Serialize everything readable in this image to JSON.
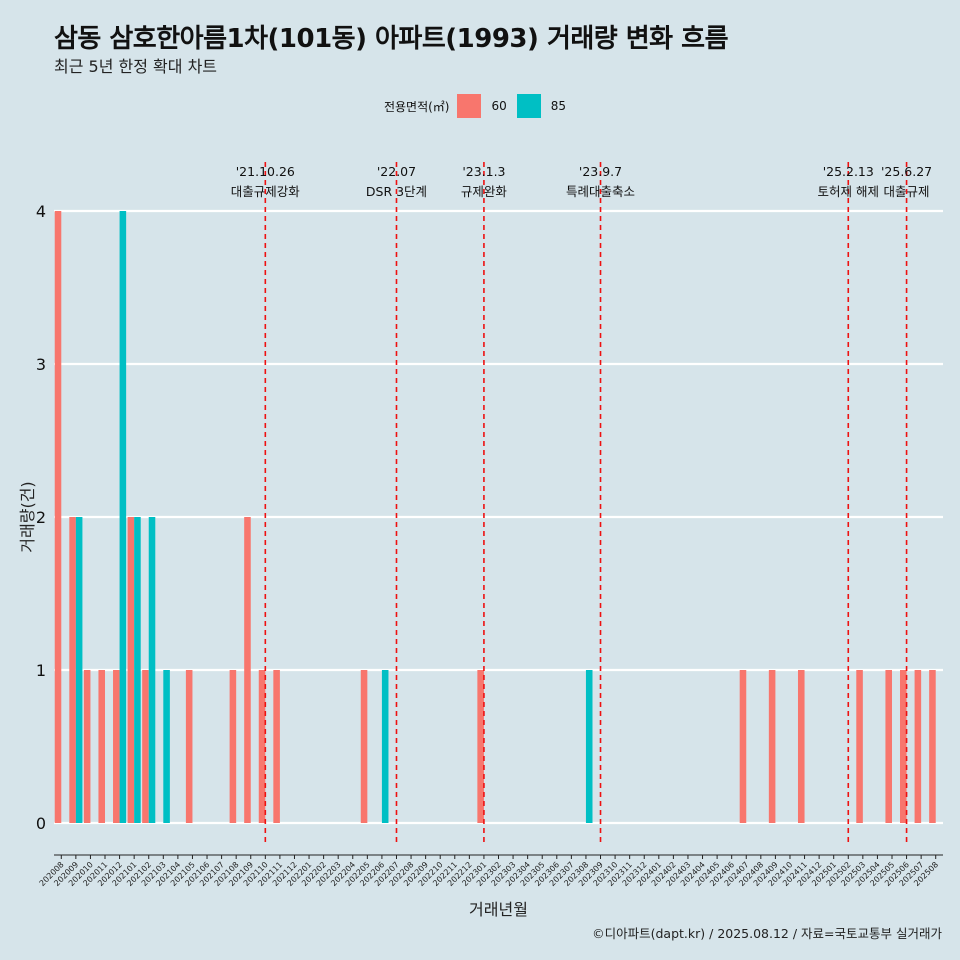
{
  "header": {
    "title": "삼동 삼호한아름1차(101동) 아파트(1993) 거래량 변화 흐름",
    "subtitle": "최근 5년 한정 확대 차트"
  },
  "legend": {
    "title": "전용면적(㎡)",
    "items": [
      {
        "label": "60",
        "color": "#F8766D"
      },
      {
        "label": "85",
        "color": "#00BFC4"
      }
    ]
  },
  "caption": "©디아파트(dapt.kr) / 2025.08.12 / 자료=국토교통부 실거래가",
  "chart_data": {
    "type": "bar",
    "xlabel": "거래년월",
    "ylabel": "거래량(건)",
    "ylim": [
      0,
      4
    ],
    "yticks": [
      0,
      1,
      2,
      3,
      4
    ],
    "grid": true,
    "legend_position": "top",
    "categories": [
      "202008",
      "202009",
      "202010",
      "202011",
      "202012",
      "202101",
      "202102",
      "202103",
      "202104",
      "202105",
      "202106",
      "202107",
      "202108",
      "202109",
      "202110",
      "202111",
      "202112",
      "202201",
      "202202",
      "202203",
      "202204",
      "202205",
      "202206",
      "202207",
      "202208",
      "202209",
      "202210",
      "202211",
      "202212",
      "202301",
      "202302",
      "202303",
      "202304",
      "202305",
      "202306",
      "202307",
      "202308",
      "202309",
      "202310",
      "202311",
      "202312",
      "202401",
      "202402",
      "202403",
      "202404",
      "202405",
      "202406",
      "202407",
      "202408",
      "202409",
      "202410",
      "202411",
      "202412",
      "202501",
      "202502",
      "202503",
      "202504",
      "202505",
      "202506",
      "202507",
      "202508"
    ],
    "series": [
      {
        "name": "60",
        "color": "#F8766D",
        "values": [
          4,
          2,
          1,
          1,
          1,
          2,
          1,
          0,
          0,
          1,
          0,
          0,
          1,
          2,
          1,
          1,
          0,
          0,
          0,
          0,
          0,
          1,
          0,
          0,
          0,
          0,
          0,
          0,
          0,
          1,
          0,
          0,
          0,
          0,
          0,
          0,
          0,
          0,
          0,
          0,
          0,
          0,
          0,
          0,
          0,
          0,
          0,
          1,
          0,
          1,
          0,
          1,
          0,
          0,
          0,
          1,
          0,
          1,
          1,
          1,
          1
        ]
      },
      {
        "name": "85",
        "color": "#00BFC4",
        "values": [
          0,
          2,
          0,
          0,
          4,
          2,
          2,
          1,
          0,
          0,
          0,
          0,
          0,
          0,
          0,
          0,
          0,
          0,
          0,
          0,
          0,
          0,
          1,
          0,
          0,
          0,
          0,
          0,
          0,
          0,
          0,
          0,
          0,
          0,
          0,
          0,
          1,
          0,
          0,
          0,
          0,
          0,
          0,
          0,
          0,
          0,
          0,
          0,
          0,
          0,
          0,
          0,
          0,
          0,
          0,
          0,
          0,
          0,
          0,
          0,
          0
        ]
      }
    ],
    "events": [
      {
        "date": "'21.10.26",
        "label": "대출규제강화",
        "index": 14.5
      },
      {
        "date": "'22.07",
        "label": "DSR 3단계",
        "index": 23.5
      },
      {
        "date": "'23.1.3",
        "label": "규제완화",
        "index": 29.5
      },
      {
        "date": "'23.9.7",
        "label": "특례대출축소",
        "index": 37.5
      },
      {
        "date": "'25.2.13",
        "label": "토허제 해제",
        "index": 54.5
      },
      {
        "date": "'25.6.27",
        "label": "대출규제",
        "index": 58.5
      }
    ]
  }
}
